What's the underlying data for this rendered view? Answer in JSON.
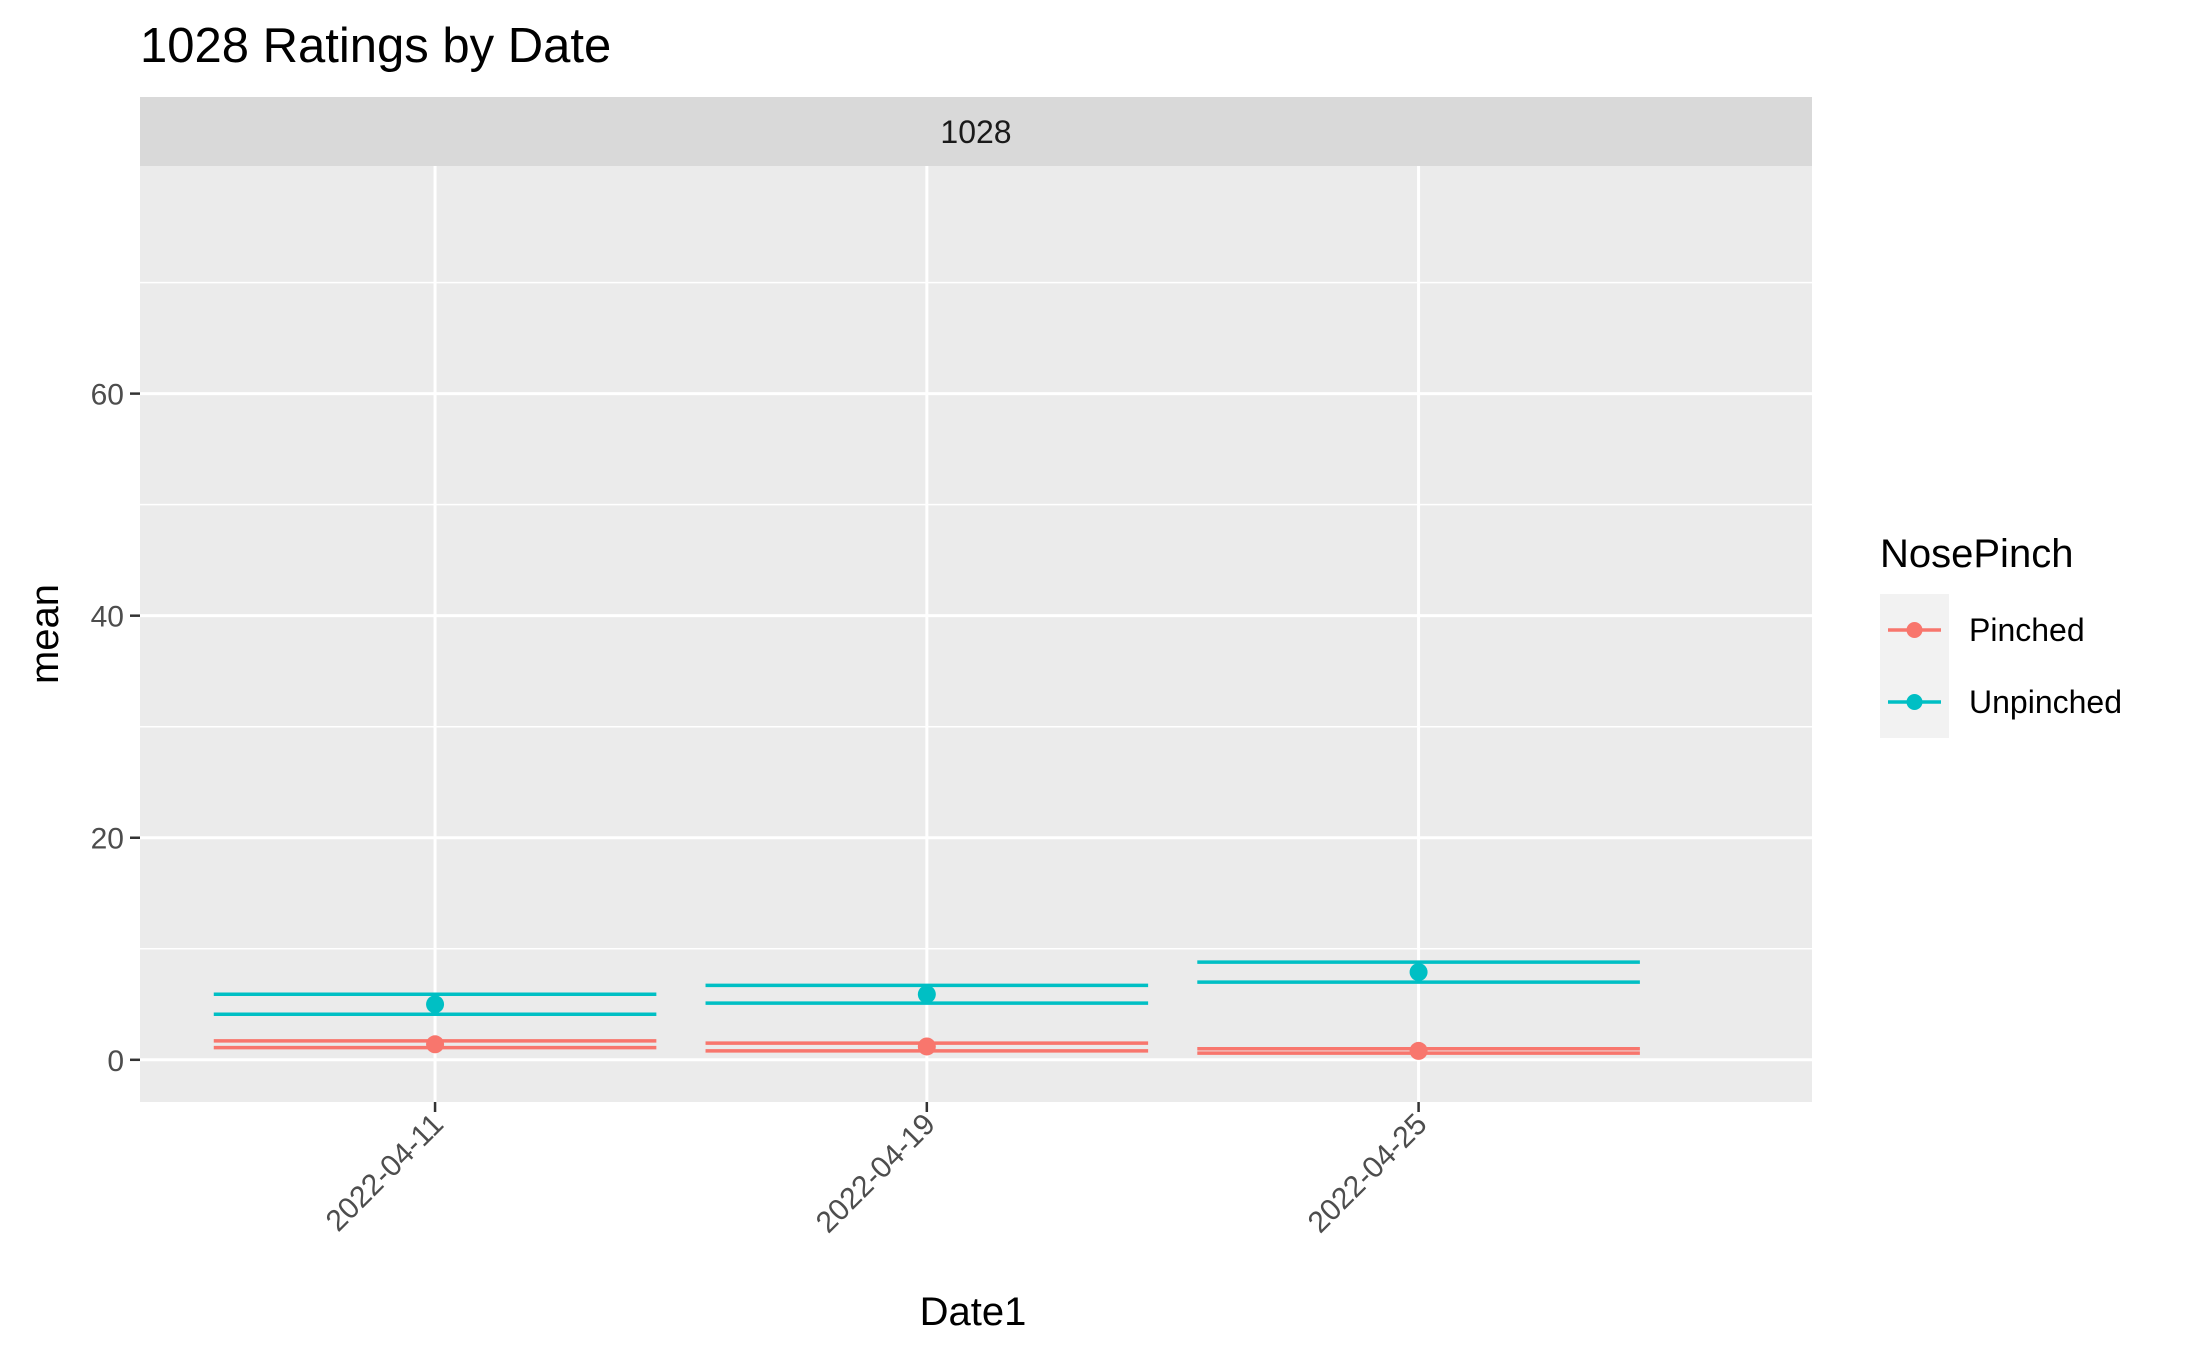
{
  "chart_data": {
    "type": "line",
    "title": "1028 Ratings by Date",
    "facet_label": "1028",
    "xlabel": "Date1",
    "ylabel": "mean",
    "categories": [
      "2022-04-11",
      "2022-04-19",
      "2022-04-25"
    ],
    "y_ticks": [
      0,
      20,
      40,
      60
    ],
    "ylim": [
      -3.8,
      80.5
    ],
    "grid": true,
    "legend": {
      "title": "NosePinch",
      "position": "right"
    },
    "series": [
      {
        "name": "Pinched",
        "color": "#F8766D",
        "values": [
          1.4,
          1.2,
          0.8
        ],
        "lower": [
          1.1,
          0.8,
          0.6
        ],
        "upper": [
          1.7,
          1.5,
          1.0
        ]
      },
      {
        "name": "Unpinched",
        "color": "#00BFC4",
        "values": [
          5.0,
          5.9,
          7.9
        ],
        "lower": [
          4.1,
          5.1,
          7.0
        ],
        "upper": [
          5.9,
          6.7,
          8.8
        ]
      }
    ]
  }
}
